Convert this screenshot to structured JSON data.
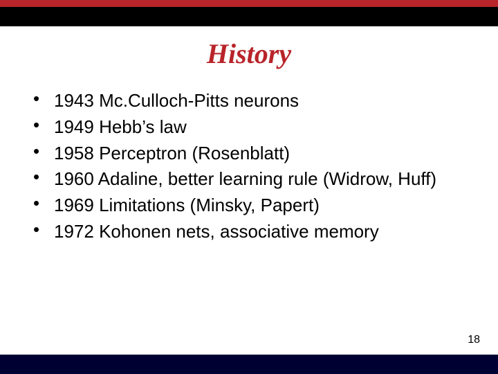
{
  "colors": {
    "accent_red": "#b8242a",
    "dark_navy": "#000033",
    "title_color": "#b8242a",
    "body_text": "#000000",
    "page_number": "#000000",
    "background": "#ffffff"
  },
  "typography": {
    "title_fontsize": 40,
    "body_fontsize": 26,
    "page_number_fontsize": 16,
    "body_line_height": 1.3
  },
  "title": "History",
  "bullets": [
    "1943 Mc.Culloch-Pitts neurons",
    "1949 Hebb’s law",
    "1958 Perceptron (Rosenblatt)",
    "1960 Adaline, better learning rule (Widrow, Huff)",
    "1969 Limitations (Minsky, Papert)",
    "1972 Kohonen nets, associative memory"
  ],
  "page_number": "18"
}
